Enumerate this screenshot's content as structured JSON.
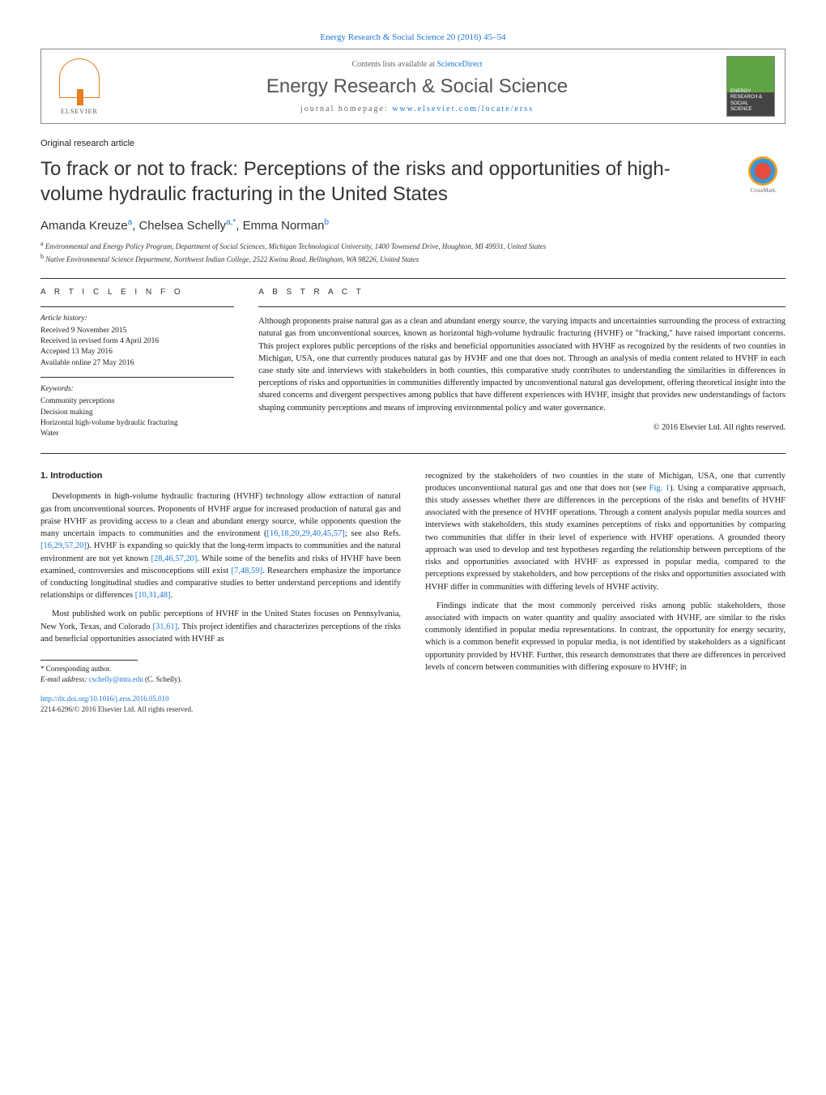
{
  "journal_ref": "Energy Research & Social Science 20 (2016) 45–54",
  "header": {
    "elsevier": "ELSEVIER",
    "contents_prefix": "Contents lists available at ",
    "sciencedirect": "ScienceDirect",
    "journal_title": "Energy Research & Social Science",
    "homepage_prefix": "journal homepage: ",
    "homepage_url": "www.elsevier.com/locate/erss",
    "cover_text": "ENERGY RESEARCH & SOCIAL SCIENCE"
  },
  "section_label": "Original research article",
  "title": "To frack or not to frack: Perceptions of the risks and opportunities of high-volume hydraulic fracturing in the United States",
  "crossmark_label": "CrossMark",
  "authors": {
    "list": "Amanda Kreuze",
    "a1_sup": "a",
    "a2": ", Chelsea Schelly",
    "a2_sup": "a,*",
    "a3": ", Emma Norman",
    "a3_sup": "b"
  },
  "affiliations": {
    "a_sup": "a",
    "a": " Environmental and Energy Policy Program, Department of Social Sciences, Michigan Technological University, 1400 Townsend Drive, Houghton, MI 49931, United States",
    "b_sup": "b",
    "b": " Native Environmental Science Department, Northwest Indian College, 2522 Kwina Road, Bellingham, WA 98226, United States"
  },
  "article_info": {
    "header": "A R T I C L E   I N F O",
    "history_label": "Article history:",
    "received": "Received 9 November 2015",
    "revised": "Received in revised form 4 April 2016",
    "accepted": "Accepted 13 May 2016",
    "online": "Available online 27 May 2016",
    "keywords_label": "Keywords:",
    "kw1": "Community perceptions",
    "kw2": "Decision making",
    "kw3": "Horizontal high-volume hydraulic fracturing",
    "kw4": "Water"
  },
  "abstract": {
    "header": "A B S T R A C T",
    "text": "Although proponents praise natural gas as a clean and abundant energy source, the varying impacts and uncertainties surrounding the process of extracting natural gas from unconventional sources, known as horizontal high-volume hydraulic fracturing (HVHF) or \"fracking,\" have raised important concerns. This project explores public perceptions of the risks and beneficial opportunities associated with HVHF as recognized by the residents of two counties in Michigan, USA, one that currently produces natural gas by HVHF and one that does not. Through an analysis of media content related to HVHF in each case study site and interviews with stakeholders in both counties, this comparative study contributes to understanding the similarities in differences in perceptions of risks and opportunities in communities differently impacted by unconventional natural gas development, offering theoretical insight into the shared concerns and divergent perspectives among publics that have different experiences with HVHF, insight that provides new understandings of factors shaping community perceptions and means of improving environmental policy and water governance.",
    "copyright": "© 2016 Elsevier Ltd. All rights reserved."
  },
  "body": {
    "intro_header": "1. Introduction",
    "p1a": "Developments in high-volume hydraulic fracturing (HVHF) technology allow extraction of natural gas from unconventional sources. Proponents of HVHF argue for increased production of natural gas and praise HVHF as providing access to a clean and abundant energy source, while opponents question the many uncertain impacts to communities and the environment (",
    "p1_ref1": "[16,18,20,29,40,45,57]",
    "p1b": "; see also Refs. ",
    "p1_ref2": "[16,29,57,20]",
    "p1c": "). HVHF is expanding so quickly that the long-term impacts to communities and the natural environment are not yet known ",
    "p1_ref3": "[28,46,57,20]",
    "p1d": ". While some of the benefits and risks of HVHF have been examined, controversies and misconceptions still exist ",
    "p1_ref4": "[7,48,59]",
    "p1e": ". Researchers emphasize the importance of conducting longitudinal studies and comparative studies to better understand perceptions and identify relationships or differences ",
    "p1_ref5": "[10,31,48]",
    "p1f": ".",
    "p2a": "Most published work on public perceptions of HVHF in the United States focuses on Pennsylvania, New York, Texas, and Colorado ",
    "p2_ref1": "[31,61]",
    "p2b": ". This project identifies and characterizes perceptions of the risks and beneficial opportunities associated with HVHF as",
    "p3a": "recognized by the stakeholders of two counties in the state of Michigan, USA, one that currently produces unconventional natural gas and one that does not (see ",
    "p3_ref1": "Fig. 1",
    "p3b": "). Using a comparative approach, this study assesses whether there are differences in the perceptions of the risks and benefits of HVHF associated with the presence of HVHF operations. Through a content analysis popular media sources and interviews with stakeholders, this study examines perceptions of risks and opportunities by comparing two communities that differ in their level of experience with HVHF operations. A grounded theory approach was used to develop and test hypotheses regarding the relationship between perceptions of the risks and opportunities associated with HVHF as expressed in popular media, compared to the perceptions expressed by stakeholders, and how perceptions of the risks and opportunities associated with HVHF differ in communities with differing levels of HVHF activity.",
    "p4": "Findings indicate that the most commonly perceived risks among public stakeholders, those associated with impacts on water quantity and quality associated with HVHF, are similar to the risks commonly identified in popular media representations. In contrast, the opportunity for energy security, which is a common benefit expressed in popular media, is not identified by stakeholders as a significant opportunity provided by HVHF. Further, this research demonstrates that there are differences in perceived levels of concern between communities with differing exposure to HVHF; in"
  },
  "footnotes": {
    "corr": "* Corresponding author.",
    "email_label": "E-mail address: ",
    "email": "cschelly@mtu.edu",
    "email_suffix": " (C. Schelly)."
  },
  "doi": "http://dx.doi.org/10.1016/j.erss.2016.05.010",
  "copyright_bottom": "2214-6296/© 2016 Elsevier Ltd. All rights reserved.",
  "colors": {
    "link": "#1976d2",
    "text": "#202020",
    "rule": "#333333",
    "elsevier_orange": "#e67e22",
    "cover_green": "#5fa345"
  }
}
